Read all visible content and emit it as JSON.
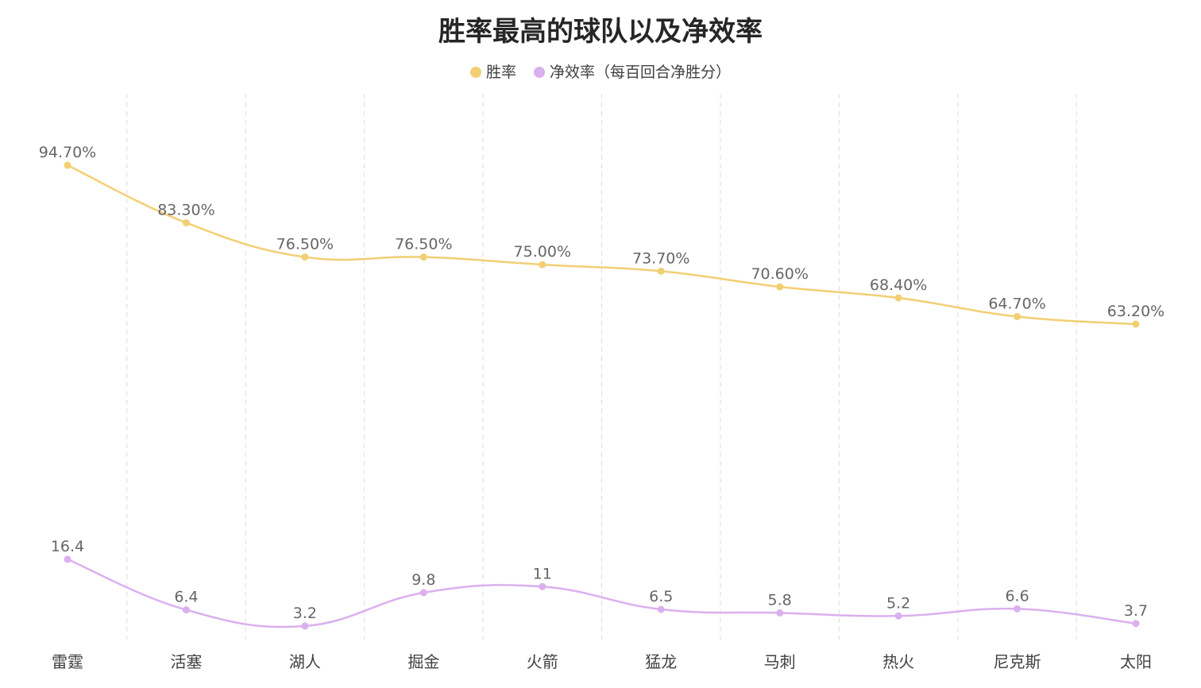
{
  "chart_data": {
    "type": "line",
    "title": "胜率最高的球队以及净效率",
    "categories": [
      "雷霆",
      "活塞",
      "湖人",
      "掘金",
      "火箭",
      "猛龙",
      "马刺",
      "热火",
      "尼克斯",
      "太阳"
    ],
    "series": [
      {
        "name": "胜率",
        "color": "#f2cf73",
        "values": [
          94.7,
          83.3,
          76.5,
          76.5,
          75.0,
          73.7,
          70.6,
          68.4,
          64.7,
          63.2
        ],
        "labels": [
          "94.70%",
          "83.30%",
          "76.50%",
          "76.50%",
          "75.00%",
          "73.70%",
          "70.60%",
          "68.40%",
          "64.70%",
          "63.20%"
        ]
      },
      {
        "name": "净效率（每百回合净胜分）",
        "color": "#dbb0ee",
        "values": [
          16.4,
          6.4,
          3.2,
          9.8,
          11,
          6.5,
          5.8,
          5.2,
          6.6,
          3.7
        ],
        "labels": [
          "16.4",
          "6.4",
          "3.2",
          "9.8",
          "11",
          "6.5",
          "5.8",
          "5.2",
          "6.6",
          "3.7"
        ]
      }
    ],
    "legend_position": "top-center",
    "grid": "vertical dashed separators"
  }
}
